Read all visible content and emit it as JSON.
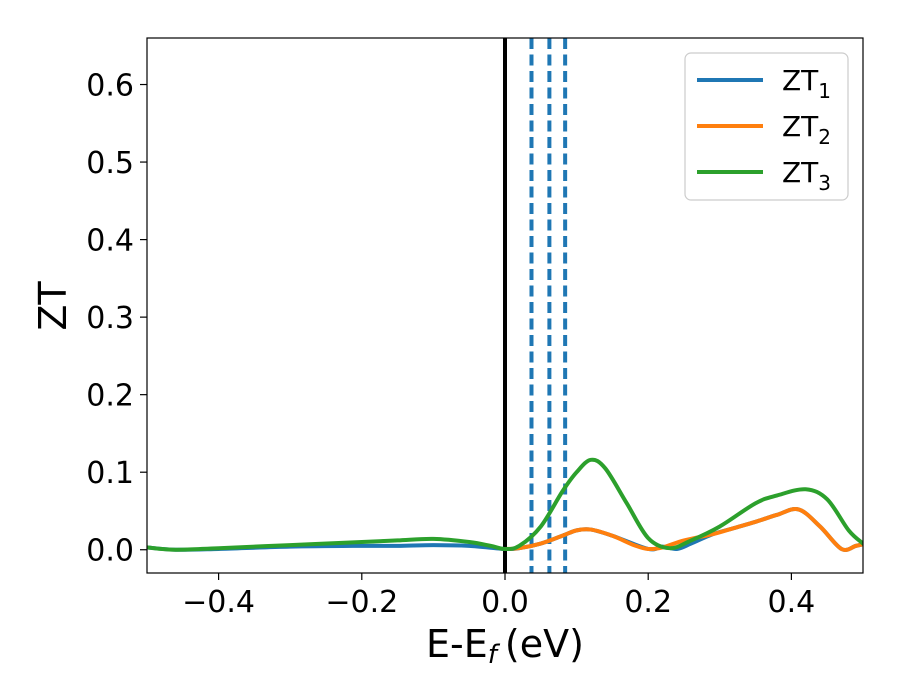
{
  "chart_data": {
    "type": "line",
    "xlabel": "E-E",
    "xlabel_sub": "f",
    "xlabel_unit": "(eV)",
    "ylabel": "ZT",
    "xlim": [
      -0.5,
      0.5
    ],
    "ylim": [
      -0.03,
      0.66
    ],
    "xticks": [
      -0.4,
      -0.2,
      0.0,
      0.2,
      0.4
    ],
    "xtick_labels": [
      "−0.4",
      "−0.2",
      "0.0",
      "0.2",
      "0.4"
    ],
    "yticks": [
      0.0,
      0.1,
      0.2,
      0.3,
      0.4,
      0.5,
      0.6
    ],
    "ytick_labels": [
      "0.0",
      "0.1",
      "0.2",
      "0.3",
      "0.4",
      "0.5",
      "0.6"
    ],
    "grid": false,
    "legend_position": "top-right",
    "reference_lines": [
      {
        "x": 0.0,
        "style": "solid",
        "color": "#000000"
      },
      {
        "x": 0.037,
        "style": "dashed",
        "color": "#1f77b4"
      },
      {
        "x": 0.062,
        "style": "dashed",
        "color": "#1f77b4"
      },
      {
        "x": 0.084,
        "style": "dashed",
        "color": "#1f77b4"
      }
    ],
    "series": [
      {
        "name": "ZT",
        "name_sub": "1",
        "color": "#1f77b4",
        "x": [
          -0.5,
          -0.46,
          -0.4,
          -0.3,
          -0.2,
          -0.15,
          -0.1,
          -0.05,
          0.0,
          0.02,
          0.05,
          0.08,
          0.1,
          0.12,
          0.15,
          0.2,
          0.22,
          0.24,
          0.26,
          0.29,
          0.32,
          0.35,
          0.38,
          0.41,
          0.44,
          0.47,
          0.49,
          0.5
        ],
        "y": [
          0.003,
          0.0,
          0.001,
          0.004,
          0.005,
          0.005,
          0.006,
          0.005,
          0.001,
          0.002,
          0.008,
          0.018,
          0.025,
          0.026,
          0.018,
          0.001,
          0.004,
          0.001,
          0.008,
          0.02,
          0.028,
          0.036,
          0.045,
          0.052,
          0.03,
          0.001,
          0.005,
          0.007
        ]
      },
      {
        "name": "ZT",
        "name_sub": "2",
        "color": "#ff7f0e",
        "x": [
          0.0,
          0.02,
          0.05,
          0.08,
          0.1,
          0.12,
          0.15,
          0.18,
          0.2,
          0.22,
          0.25,
          0.29,
          0.32,
          0.35,
          0.38,
          0.41,
          0.44,
          0.47,
          0.49,
          0.5
        ],
        "y": [
          0.001,
          0.002,
          0.008,
          0.018,
          0.025,
          0.026,
          0.018,
          0.006,
          0.001,
          0.003,
          0.012,
          0.02,
          0.028,
          0.036,
          0.045,
          0.052,
          0.03,
          0.001,
          0.005,
          0.007
        ]
      },
      {
        "name": "ZT",
        "name_sub": "3",
        "color": "#2ca02c",
        "x": [
          -0.5,
          -0.46,
          -0.4,
          -0.3,
          -0.2,
          -0.15,
          -0.1,
          -0.05,
          -0.02,
          0.0,
          0.02,
          0.05,
          0.08,
          0.1,
          0.12,
          0.14,
          0.17,
          0.2,
          0.23,
          0.26,
          0.3,
          0.35,
          0.38,
          0.42,
          0.45,
          0.48,
          0.5
        ],
        "y": [
          0.003,
          0.0,
          0.002,
          0.006,
          0.01,
          0.012,
          0.014,
          0.01,
          0.005,
          0.001,
          0.005,
          0.03,
          0.075,
          0.1,
          0.116,
          0.105,
          0.06,
          0.015,
          0.002,
          0.012,
          0.03,
          0.06,
          0.07,
          0.078,
          0.065,
          0.025,
          0.008
        ]
      }
    ]
  }
}
